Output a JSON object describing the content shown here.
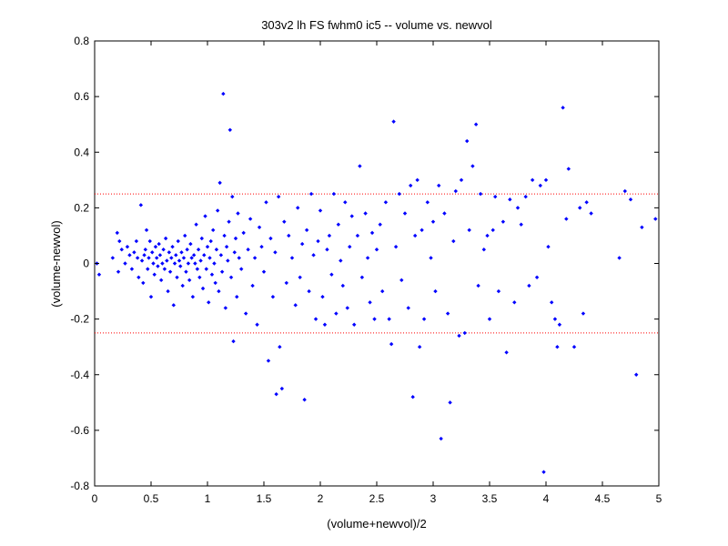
{
  "chart_data": {
    "type": "scatter",
    "title": "303v2 lh FS fwhm0 ic5 -- volume vs. newvol",
    "xlabel": "(volume+newvol)/2",
    "ylabel": "(volume-newvol)",
    "xlim": [
      0,
      5
    ],
    "ylim": [
      -0.8,
      0.8
    ],
    "x_ticks": [
      "0",
      "0.5",
      "1",
      "1.5",
      "2",
      "2.5",
      "3",
      "3.5",
      "4",
      "4.5",
      "5"
    ],
    "y_ticks": [
      "-0.8",
      "-0.6",
      "-0.4",
      "-0.2",
      "0",
      "0.2",
      "0.4",
      "0.6",
      "0.8"
    ],
    "grid": false,
    "reference_lines": [
      0.25,
      -0.25
    ],
    "colors": {
      "points": "#0000ff",
      "reference": "#ff0000",
      "axes": "#000000"
    },
    "points": [
      [
        0.02,
        0.0
      ],
      [
        0.04,
        -0.04
      ],
      [
        0.16,
        0.02
      ],
      [
        0.2,
        0.11
      ],
      [
        0.22,
        0.08
      ],
      [
        0.24,
        0.05
      ],
      [
        0.21,
        -0.03
      ],
      [
        0.27,
        0.0
      ],
      [
        0.29,
        0.06
      ],
      [
        0.31,
        0.03
      ],
      [
        0.33,
        -0.02
      ],
      [
        0.35,
        0.04
      ],
      [
        0.37,
        0.08
      ],
      [
        0.38,
        0.02
      ],
      [
        0.39,
        -0.05
      ],
      [
        0.41,
        0.21
      ],
      [
        0.42,
        0.01
      ],
      [
        0.43,
        -0.07
      ],
      [
        0.44,
        0.03
      ],
      [
        0.45,
        0.05
      ],
      [
        0.46,
        0.12
      ],
      [
        0.47,
        -0.02
      ],
      [
        0.48,
        0.02
      ],
      [
        0.49,
        0.08
      ],
      [
        0.5,
        -0.12
      ],
      [
        0.51,
        0.04
      ],
      [
        0.52,
        0.0
      ],
      [
        0.53,
        -0.04
      ],
      [
        0.54,
        0.06
      ],
      [
        0.55,
        0.02
      ],
      [
        0.56,
        -0.01
      ],
      [
        0.57,
        0.07
      ],
      [
        0.58,
        0.03
      ],
      [
        0.59,
        -0.06
      ],
      [
        0.6,
        0.0
      ],
      [
        0.61,
        0.05
      ],
      [
        0.62,
        -0.02
      ],
      [
        0.63,
        0.09
      ],
      [
        0.64,
        0.01
      ],
      [
        0.65,
        -0.1
      ],
      [
        0.66,
        0.04
      ],
      [
        0.67,
        -0.03
      ],
      [
        0.68,
        0.02
      ],
      [
        0.69,
        0.06
      ],
      [
        0.7,
        -0.15
      ],
      [
        0.71,
        0.0
      ],
      [
        0.72,
        0.03
      ],
      [
        0.73,
        -0.05
      ],
      [
        0.74,
        0.08
      ],
      [
        0.75,
        0.01
      ],
      [
        0.76,
        -0.01
      ],
      [
        0.77,
        0.04
      ],
      [
        0.78,
        -0.08
      ],
      [
        0.79,
        0.02
      ],
      [
        0.8,
        0.1
      ],
      [
        0.81,
        -0.03
      ],
      [
        0.82,
        0.05
      ],
      [
        0.83,
        0.0
      ],
      [
        0.84,
        -0.06
      ],
      [
        0.85,
        0.07
      ],
      [
        0.86,
        0.02
      ],
      [
        0.87,
        -0.12
      ],
      [
        0.88,
        0.03
      ],
      [
        0.89,
        0.0
      ],
      [
        0.9,
        0.14
      ],
      [
        0.91,
        -0.02
      ],
      [
        0.92,
        0.05
      ],
      [
        0.93,
        -0.05
      ],
      [
        0.94,
        0.01
      ],
      [
        0.95,
        0.09
      ],
      [
        0.96,
        -0.09
      ],
      [
        0.97,
        0.03
      ],
      [
        0.98,
        0.17
      ],
      [
        0.99,
        -0.02
      ],
      [
        1.0,
        0.06
      ],
      [
        1.01,
        -0.14
      ],
      [
        1.02,
        0.02
      ],
      [
        1.03,
        0.08
      ],
      [
        1.04,
        -0.04
      ],
      [
        1.05,
        0.12
      ],
      [
        1.06,
        0.0
      ],
      [
        1.07,
        -0.07
      ],
      [
        1.08,
        0.05
      ],
      [
        1.09,
        0.19
      ],
      [
        1.1,
        -0.1
      ],
      [
        1.11,
        0.29
      ],
      [
        1.12,
        0.03
      ],
      [
        1.13,
        -0.03
      ],
      [
        1.14,
        0.61
      ],
      [
        1.15,
        0.1
      ],
      [
        1.16,
        -0.16
      ],
      [
        1.17,
        0.06
      ],
      [
        1.18,
        0.01
      ],
      [
        1.19,
        0.15
      ],
      [
        1.2,
        0.48
      ],
      [
        1.21,
        -0.05
      ],
      [
        1.22,
        0.24
      ],
      [
        1.23,
        -0.28
      ],
      [
        1.24,
        0.04
      ],
      [
        1.25,
        0.09
      ],
      [
        1.26,
        -0.12
      ],
      [
        1.27,
        0.18
      ],
      [
        1.28,
        0.02
      ],
      [
        1.3,
        -0.02
      ],
      [
        1.32,
        0.11
      ],
      [
        1.34,
        -0.18
      ],
      [
        1.36,
        0.05
      ],
      [
        1.38,
        0.16
      ],
      [
        1.4,
        -0.08
      ],
      [
        1.42,
        0.02
      ],
      [
        1.44,
        -0.22
      ],
      [
        1.46,
        0.13
      ],
      [
        1.48,
        0.06
      ],
      [
        1.5,
        -0.03
      ],
      [
        1.52,
        0.22
      ],
      [
        1.54,
        -0.35
      ],
      [
        1.56,
        0.09
      ],
      [
        1.58,
        -0.12
      ],
      [
        1.6,
        0.04
      ],
      [
        1.61,
        -0.47
      ],
      [
        1.63,
        0.24
      ],
      [
        1.64,
        -0.3
      ],
      [
        1.66,
        -0.45
      ],
      [
        1.68,
        0.15
      ],
      [
        1.7,
        -0.07
      ],
      [
        1.72,
        0.1
      ],
      [
        1.75,
        0.02
      ],
      [
        1.78,
        -0.15
      ],
      [
        1.8,
        0.2
      ],
      [
        1.82,
        -0.05
      ],
      [
        1.84,
        0.07
      ],
      [
        1.86,
        -0.49
      ],
      [
        1.88,
        0.12
      ],
      [
        1.9,
        -0.1
      ],
      [
        1.92,
        0.25
      ],
      [
        1.94,
        0.03
      ],
      [
        1.96,
        -0.2
      ],
      [
        1.98,
        0.08
      ],
      [
        2.0,
        0.19
      ],
      [
        2.02,
        -0.12
      ],
      [
        2.04,
        -0.22
      ],
      [
        2.06,
        0.05
      ],
      [
        2.08,
        0.1
      ],
      [
        2.1,
        -0.04
      ],
      [
        2.12,
        0.25
      ],
      [
        2.14,
        -0.18
      ],
      [
        2.16,
        0.14
      ],
      [
        2.18,
        0.01
      ],
      [
        2.2,
        -0.08
      ],
      [
        2.22,
        0.22
      ],
      [
        2.24,
        -0.16
      ],
      [
        2.26,
        0.06
      ],
      [
        2.28,
        0.17
      ],
      [
        2.3,
        -0.22
      ],
      [
        2.33,
        0.1
      ],
      [
        2.35,
        0.35
      ],
      [
        2.37,
        -0.05
      ],
      [
        2.4,
        0.18
      ],
      [
        2.42,
        0.02
      ],
      [
        2.44,
        -0.14
      ],
      [
        2.46,
        0.11
      ],
      [
        2.48,
        -0.2
      ],
      [
        2.5,
        0.05
      ],
      [
        2.53,
        0.14
      ],
      [
        2.55,
        -0.1
      ],
      [
        2.58,
        0.22
      ],
      [
        2.61,
        -0.2
      ],
      [
        2.63,
        -0.29
      ],
      [
        2.65,
        0.51
      ],
      [
        2.67,
        0.06
      ],
      [
        2.7,
        0.25
      ],
      [
        2.72,
        -0.06
      ],
      [
        2.75,
        0.18
      ],
      [
        2.78,
        -0.16
      ],
      [
        2.8,
        0.28
      ],
      [
        2.82,
        -0.48
      ],
      [
        2.84,
        0.1
      ],
      [
        2.86,
        0.3
      ],
      [
        2.88,
        -0.3
      ],
      [
        2.9,
        0.12
      ],
      [
        2.92,
        -0.2
      ],
      [
        2.95,
        0.22
      ],
      [
        2.98,
        0.02
      ],
      [
        3.0,
        0.15
      ],
      [
        3.02,
        -0.1
      ],
      [
        3.05,
        0.28
      ],
      [
        3.07,
        -0.63
      ],
      [
        3.1,
        0.18
      ],
      [
        3.13,
        -0.18
      ],
      [
        3.15,
        -0.5
      ],
      [
        3.18,
        0.08
      ],
      [
        3.2,
        0.26
      ],
      [
        3.23,
        -0.26
      ],
      [
        3.25,
        0.3
      ],
      [
        3.28,
        -0.25
      ],
      [
        3.3,
        0.44
      ],
      [
        3.32,
        0.12
      ],
      [
        3.35,
        0.35
      ],
      [
        3.38,
        0.5
      ],
      [
        3.4,
        -0.08
      ],
      [
        3.42,
        0.25
      ],
      [
        3.45,
        0.05
      ],
      [
        3.48,
        0.1
      ],
      [
        3.5,
        -0.2
      ],
      [
        3.53,
        0.12
      ],
      [
        3.55,
        0.24
      ],
      [
        3.58,
        -0.1
      ],
      [
        3.62,
        0.15
      ],
      [
        3.65,
        -0.32
      ],
      [
        3.68,
        0.23
      ],
      [
        3.72,
        -0.14
      ],
      [
        3.75,
        0.2
      ],
      [
        3.78,
        0.14
      ],
      [
        3.82,
        0.24
      ],
      [
        3.85,
        -0.08
      ],
      [
        3.88,
        0.3
      ],
      [
        3.92,
        -0.05
      ],
      [
        3.95,
        0.28
      ],
      [
        3.98,
        -0.75
      ],
      [
        4.0,
        0.3
      ],
      [
        4.02,
        0.06
      ],
      [
        4.05,
        -0.14
      ],
      [
        4.08,
        -0.2
      ],
      [
        4.1,
        -0.3
      ],
      [
        4.12,
        -0.22
      ],
      [
        4.15,
        0.56
      ],
      [
        4.18,
        0.16
      ],
      [
        4.2,
        0.34
      ],
      [
        4.25,
        -0.3
      ],
      [
        4.3,
        0.2
      ],
      [
        4.33,
        -0.18
      ],
      [
        4.36,
        0.22
      ],
      [
        4.4,
        0.18
      ],
      [
        4.65,
        0.02
      ],
      [
        4.7,
        0.26
      ],
      [
        4.75,
        0.23
      ],
      [
        4.8,
        -0.4
      ],
      [
        4.85,
        0.13
      ],
      [
        4.97,
        0.16
      ]
    ]
  }
}
